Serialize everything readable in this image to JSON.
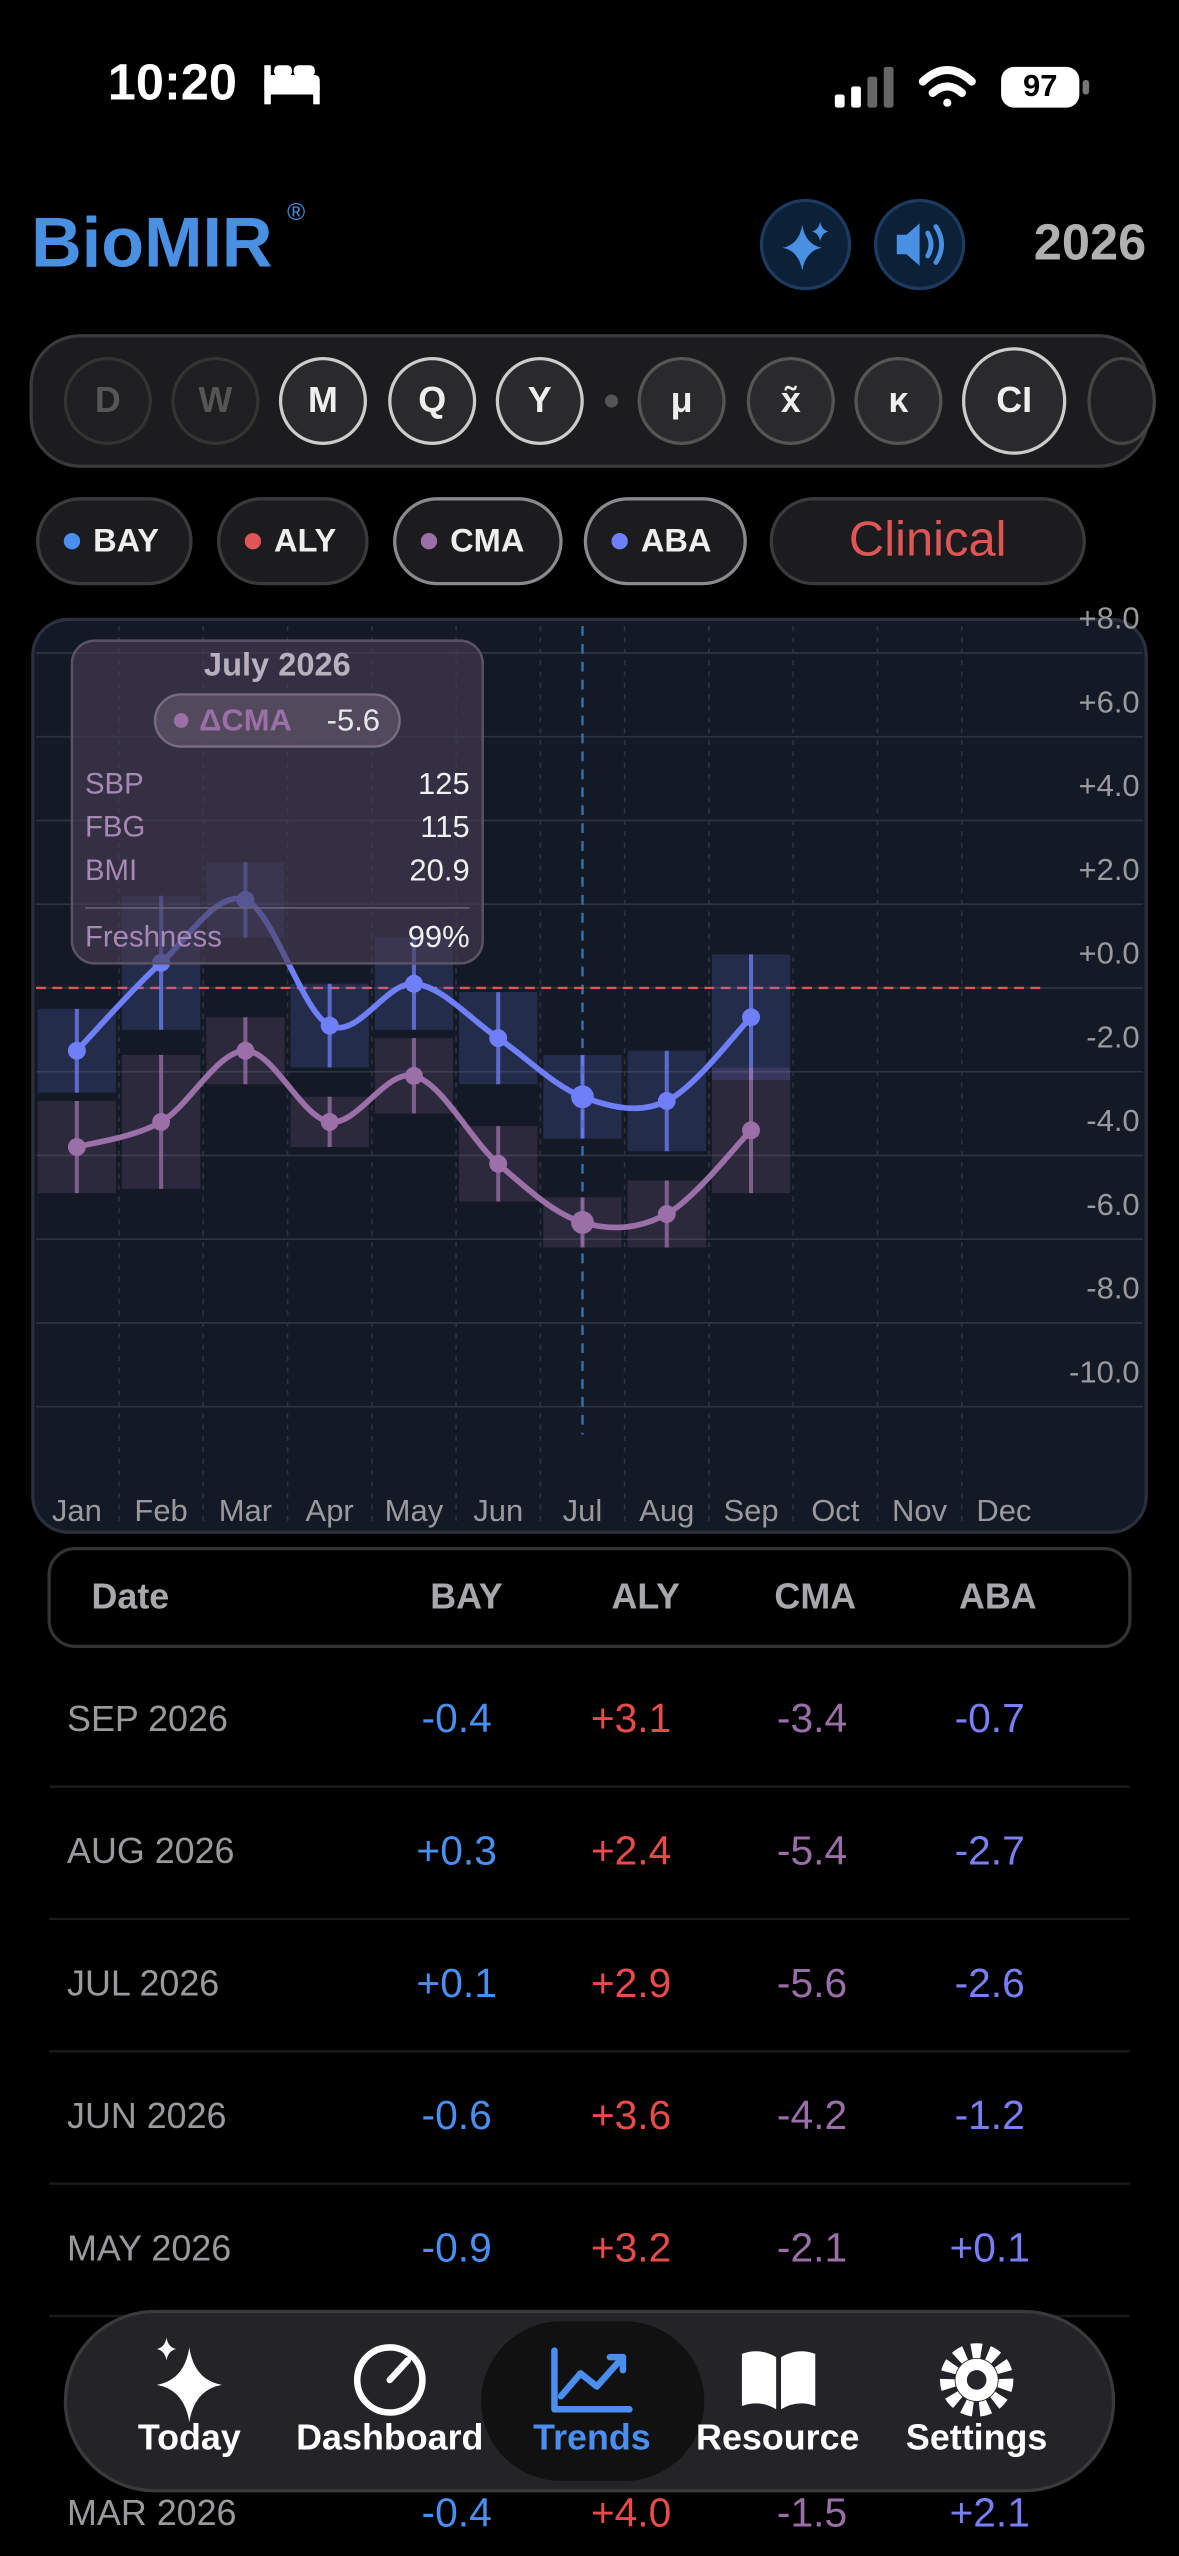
{
  "status_bar": {
    "time": "10:20",
    "battery": "97"
  },
  "header": {
    "title": "BioMIR",
    "trademark": "®",
    "year": "2026"
  },
  "period_buttons": [
    "D",
    "W",
    "M",
    "Q",
    "Y",
    "μ",
    "x̃",
    "κ",
    "CI"
  ],
  "series_chips": [
    {
      "name": "BAY",
      "color": "#4a8ff0"
    },
    {
      "name": "ALY",
      "color": "#e05555"
    },
    {
      "name": "CMA",
      "color": "#9b6fa8"
    },
    {
      "name": "ABA",
      "color": "#6f7ff7"
    }
  ],
  "clinical_button": "Clinical",
  "chart_data": {
    "type": "line",
    "categories": [
      "Jan",
      "Feb",
      "Mar",
      "Apr",
      "May",
      "Jun",
      "Jul",
      "Aug",
      "Sep",
      "Oct",
      "Nov",
      "Dec"
    ],
    "series": [
      {
        "name": "ABA",
        "color": "#6f7ff7",
        "values": [
          -1.5,
          0.6,
          2.1,
          -0.9,
          0.1,
          -1.2,
          -2.6,
          -2.7,
          -0.7,
          null,
          null,
          null
        ],
        "errors": [
          1.0,
          1.6,
          0.9,
          1.0,
          1.1,
          1.1,
          1.0,
          1.2,
          1.5,
          null,
          null,
          null
        ]
      },
      {
        "name": "CMA",
        "color": "#9b6fa8",
        "values": [
          -3.8,
          -3.2,
          -1.5,
          -3.2,
          -2.1,
          -4.2,
          -5.6,
          -5.4,
          -3.4,
          null,
          null,
          null
        ],
        "errors": [
          1.1,
          1.6,
          0.8,
          0.6,
          0.9,
          0.9,
          0.6,
          0.8,
          1.5,
          null,
          null,
          null
        ]
      }
    ],
    "ylim": [
      -13,
      8.8
    ],
    "yticks": [
      {
        "value": 8,
        "label": "+8.0"
      },
      {
        "value": 6,
        "label": "+6.0"
      },
      {
        "value": 4,
        "label": "+4.0"
      },
      {
        "value": 2,
        "label": "+2.0"
      },
      {
        "value": 0,
        "label": "+0.0"
      },
      {
        "value": -2,
        "label": "-2.0"
      },
      {
        "value": -4,
        "label": "-4.0"
      },
      {
        "value": -6,
        "label": "-6.0"
      },
      {
        "value": -8,
        "label": "-8.0"
      },
      {
        "value": -10,
        "label": "-10.0"
      }
    ],
    "grid": true,
    "reference_line": {
      "value": 0,
      "color": "#e05555"
    },
    "selected_category": "Jul",
    "tooltip": {
      "title": "July 2026",
      "delta_label": "ΔCMA",
      "delta_value": "-5.6",
      "rows": [
        [
          "SBP",
          "125"
        ],
        [
          "FBG",
          "115"
        ],
        [
          "BMI",
          "20.9"
        ]
      ],
      "freshness_label": "Freshness",
      "freshness_value": "99%"
    }
  },
  "table": {
    "header": [
      "Date",
      "BAY",
      "ALY",
      "CMA",
      "ABA"
    ],
    "rows": [
      [
        "SEP 2026",
        "-0.4",
        "+3.1",
        "-3.4",
        "-0.7"
      ],
      [
        "AUG 2026",
        "+0.3",
        "+2.4",
        "-5.4",
        "-2.7"
      ],
      [
        "JUL 2026",
        "+0.1",
        "+2.9",
        "-5.6",
        "-2.6"
      ],
      [
        "JUN 2026",
        "-0.6",
        "+3.6",
        "-4.2",
        "-1.2"
      ],
      [
        "MAY 2026",
        "-0.9",
        "+3.2",
        "-2.1",
        "+0.1"
      ],
      [
        "MAR 2026",
        "-0.4",
        "+4.0",
        "-1.5",
        "+2.1"
      ]
    ]
  },
  "tab_bar": [
    "Today",
    "Dashboard",
    "Trends",
    "Resource",
    "Settings"
  ],
  "tab_selected": "Trends"
}
